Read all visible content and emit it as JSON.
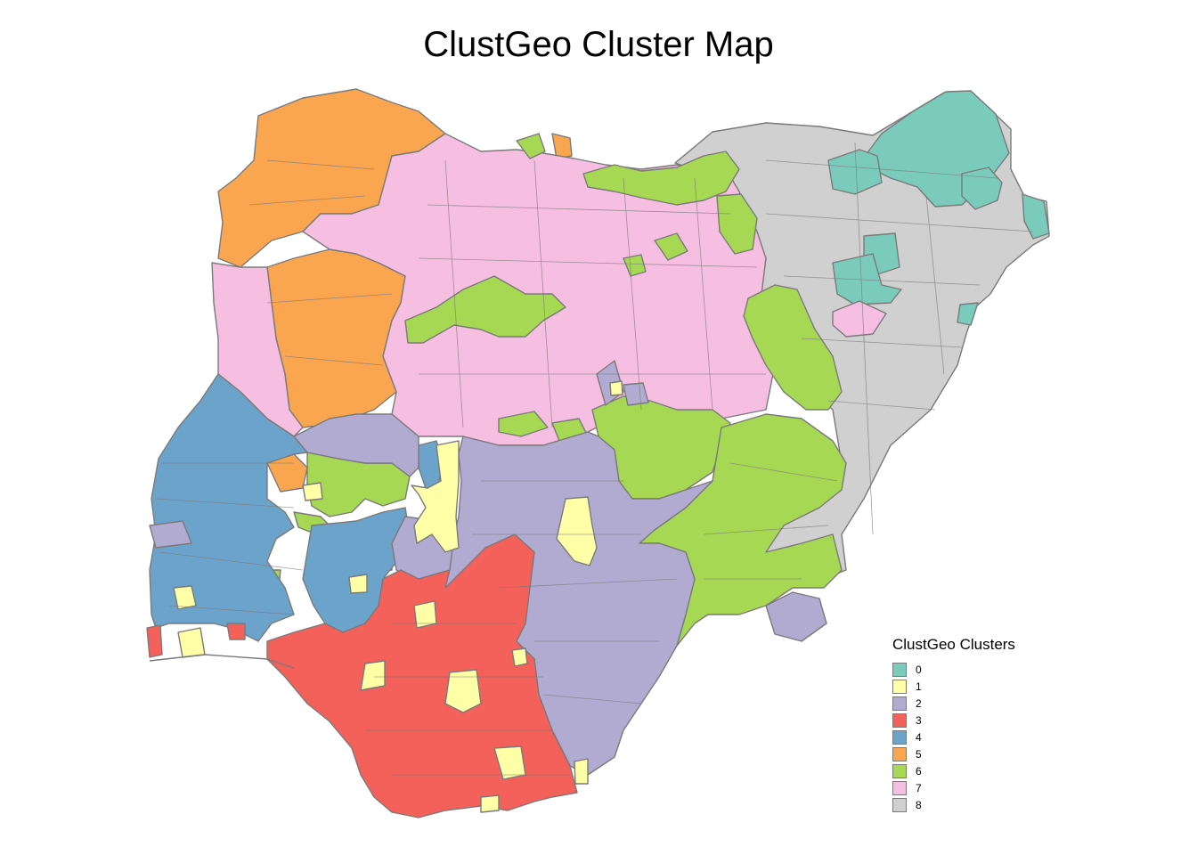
{
  "title": "ClustGeo Cluster Map",
  "legend": {
    "title": "ClustGeo Clusters",
    "items": [
      {
        "label": "0",
        "color": "#7BCBBC"
      },
      {
        "label": "1",
        "color": "#FFFFA8"
      },
      {
        "label": "2",
        "color": "#B1ABD2"
      },
      {
        "label": "3",
        "color": "#F4605A"
      },
      {
        "label": "4",
        "color": "#6CA3CB"
      },
      {
        "label": "5",
        "color": "#FAA54F"
      },
      {
        "label": "6",
        "color": "#A6D854"
      },
      {
        "label": "7",
        "color": "#F6BEE1"
      },
      {
        "label": "8",
        "color": "#D0D0D0"
      }
    ]
  },
  "border_color": "#7a7a7a"
}
